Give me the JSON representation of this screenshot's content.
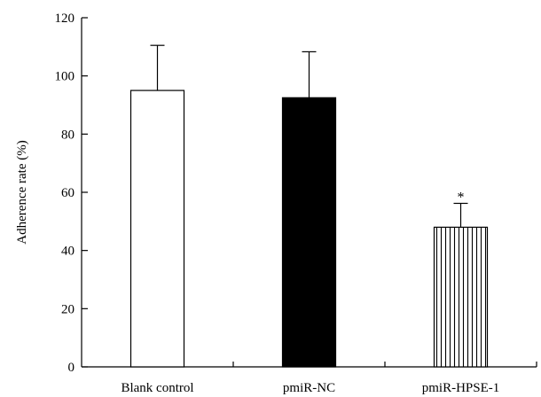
{
  "chart_data": {
    "type": "bar",
    "title": "",
    "xlabel": "",
    "ylabel": "Adherence rate (%)",
    "ylim": [
      0,
      120
    ],
    "yticks": [
      0,
      20,
      40,
      60,
      80,
      100,
      120
    ],
    "grid": false,
    "legend": "none",
    "categories": [
      "Blank control",
      "pmiR-NC",
      "pmiR-HPSE-1"
    ],
    "values": [
      95,
      92.5,
      48
    ],
    "errors": [
      15.5,
      15.8,
      8.2
    ],
    "bar_styles": [
      "white",
      "black",
      "vertical-hatch"
    ],
    "annotations": [
      {
        "category_index": 2,
        "text": "*"
      }
    ]
  }
}
